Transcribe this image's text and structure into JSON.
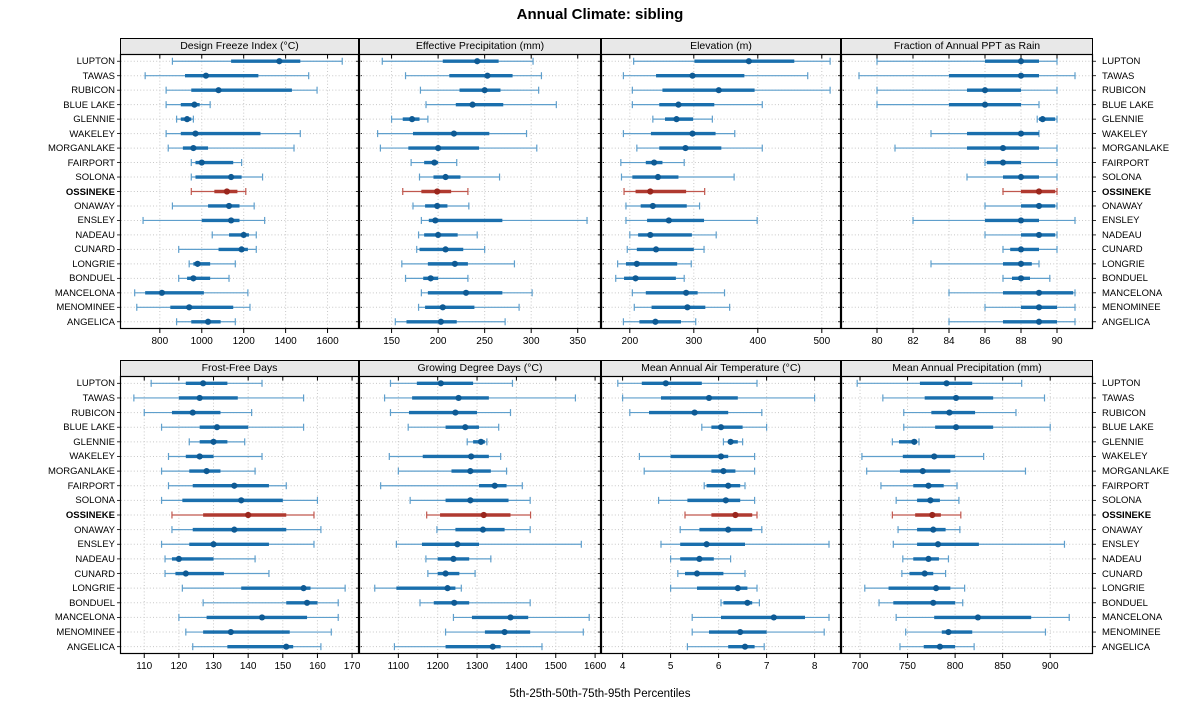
{
  "title": "Annual Climate: sibling",
  "xlabel": "5th-25th-50th-75th-95th Percentiles",
  "highlight_site": "OSSINEKE",
  "colors": {
    "blue_thin": "#5f9fcc",
    "blue_thick": "#1a6fad",
    "blue_dot": "#0e5a94",
    "red_thin": "#c0574e",
    "red_thick": "#b03a30",
    "red_dot": "#9a261d",
    "strip_bg": "#e8e8e8",
    "grid": "#c8c8c8",
    "border": "#000000"
  },
  "chart_data": {
    "type": "interval-dotplot",
    "note": "Each row shows 5th-25th-50th-75th-95th percentile whisker/box/dot per site",
    "percentiles": [
      "5th",
      "25th",
      "50th",
      "75th",
      "95th"
    ],
    "categories": [
      "LUPTON",
      "TAWAS",
      "RUBICON",
      "BLUE LAKE",
      "GLENNIE",
      "WAKELEY",
      "MORGANLAKE",
      "FAIRPORT",
      "SOLONA",
      "OSSINEKE",
      "ONAWAY",
      "ENSLEY",
      "NADEAU",
      "CUNARD",
      "LONGRIE",
      "BONDUEL",
      "MANCELONA",
      "MENOMINEE",
      "ANGELICA"
    ],
    "panels": [
      {
        "title": "Design Freeze Index (°C)",
        "ticks": [
          800,
          1000,
          1200,
          1400,
          1600
        ],
        "xlim": [
          610,
          1750
        ],
        "values": [
          [
            860,
            1140,
            1370,
            1470,
            1670
          ],
          [
            730,
            920,
            1020,
            1270,
            1510
          ],
          [
            830,
            950,
            1080,
            1430,
            1550
          ],
          [
            830,
            900,
            965,
            990,
            1040
          ],
          [
            880,
            900,
            930,
            950,
            960
          ],
          [
            830,
            900,
            970,
            1280,
            1470
          ],
          [
            840,
            910,
            960,
            1030,
            1440
          ],
          [
            950,
            970,
            1000,
            1150,
            1190
          ],
          [
            950,
            970,
            1140,
            1190,
            1290
          ],
          [
            950,
            1060,
            1120,
            1170,
            1210
          ],
          [
            860,
            1030,
            1130,
            1180,
            1250
          ],
          [
            720,
            1000,
            1140,
            1180,
            1300
          ],
          [
            1050,
            1130,
            1200,
            1225,
            1260
          ],
          [
            890,
            1080,
            1190,
            1220,
            1260
          ],
          [
            940,
            960,
            980,
            1040,
            1160
          ],
          [
            890,
            930,
            960,
            1040,
            1130
          ],
          [
            680,
            730,
            810,
            1010,
            1220
          ],
          [
            690,
            850,
            940,
            1150,
            1230
          ],
          [
            880,
            950,
            1030,
            1090,
            1160
          ]
        ]
      },
      {
        "title": "Effective Precipitation (mm)",
        "ticks": [
          150,
          200,
          250,
          300,
          350
        ],
        "xlim": [
          115,
          375
        ],
        "values": [
          [
            140,
            205,
            242,
            265,
            302
          ],
          [
            165,
            212,
            253,
            280,
            311
          ],
          [
            181,
            223,
            250,
            267,
            308
          ],
          [
            187,
            219,
            237,
            270,
            327
          ],
          [
            150,
            162,
            172,
            180,
            189
          ],
          [
            135,
            173,
            217,
            255,
            295
          ],
          [
            138,
            168,
            200,
            244,
            306
          ],
          [
            171,
            185,
            196,
            200,
            220
          ],
          [
            180,
            195,
            208,
            224,
            266
          ],
          [
            162,
            182,
            199,
            214,
            232
          ],
          [
            173,
            186,
            199,
            210,
            233
          ],
          [
            182,
            190,
            197,
            269,
            360
          ],
          [
            179,
            185,
            200,
            221,
            242
          ],
          [
            177,
            180,
            208,
            227,
            250
          ],
          [
            161,
            189,
            218,
            232,
            282
          ],
          [
            165,
            184,
            192,
            200,
            232
          ],
          [
            182,
            189,
            230,
            269,
            301
          ],
          [
            179,
            186,
            205,
            239,
            287
          ],
          [
            154,
            166,
            203,
            220,
            272
          ]
        ]
      },
      {
        "title": "Elevation (m)",
        "ticks": [
          200,
          300,
          400,
          500
        ],
        "xlim": [
          155,
          530
        ],
        "values": [
          [
            206,
            301,
            386,
            457,
            513
          ],
          [
            190,
            241,
            298,
            379,
            478
          ],
          [
            204,
            251,
            339,
            395,
            513
          ],
          [
            204,
            246,
            276,
            332,
            407
          ],
          [
            236,
            255,
            273,
            299,
            329
          ],
          [
            190,
            233,
            298,
            334,
            364
          ],
          [
            211,
            246,
            287,
            343,
            407
          ],
          [
            186,
            225,
            238,
            251,
            285
          ],
          [
            187,
            204,
            244,
            276,
            363
          ],
          [
            191,
            209,
            232,
            288,
            317
          ],
          [
            194,
            217,
            236,
            289,
            309
          ],
          [
            194,
            227,
            261,
            316,
            399
          ],
          [
            200,
            213,
            232,
            297,
            335
          ],
          [
            196,
            211,
            241,
            300,
            316
          ],
          [
            181,
            194,
            211,
            274,
            296
          ],
          [
            178,
            191,
            209,
            272,
            285
          ],
          [
            204,
            225,
            288,
            306,
            348
          ],
          [
            207,
            234,
            290,
            318,
            356
          ],
          [
            190,
            215,
            240,
            280,
            303
          ]
        ]
      },
      {
        "title": "Fraction of Annual PPT as Rain",
        "ticks": [
          80,
          82,
          84,
          86,
          88,
          90
        ],
        "xlim": [
          78,
          92
        ],
        "values": [
          [
            80,
            86,
            88,
            89,
            90
          ],
          [
            79,
            84,
            88,
            89,
            91
          ],
          [
            80,
            85,
            86,
            88,
            90
          ],
          [
            80,
            84,
            86,
            88,
            89
          ],
          [
            88.9,
            89,
            89.2,
            89.9,
            90
          ],
          [
            83,
            85,
            88,
            89,
            89
          ],
          [
            81,
            85,
            87,
            89,
            90
          ],
          [
            86,
            86.1,
            87,
            88,
            90
          ],
          [
            85,
            87,
            88,
            89,
            90
          ],
          [
            87,
            88,
            89,
            89.9,
            90
          ],
          [
            86,
            88,
            89,
            89.9,
            90
          ],
          [
            82,
            86,
            88,
            89,
            91
          ],
          [
            86,
            88,
            89,
            89.9,
            90
          ],
          [
            87,
            87.4,
            88,
            89,
            90
          ],
          [
            83,
            87,
            88,
            88.6,
            89
          ],
          [
            87,
            87.5,
            88,
            88.5,
            89.6
          ],
          [
            84,
            87,
            89,
            90.9,
            91
          ],
          [
            86,
            88,
            89,
            90,
            91
          ],
          [
            84,
            87,
            89,
            90,
            91
          ]
        ]
      },
      {
        "title": "Frost-Free Days",
        "ticks": [
          110,
          120,
          130,
          140,
          150,
          160,
          170
        ],
        "xlim": [
          103,
          172
        ],
        "values": [
          [
            112,
            122,
            127,
            134,
            144
          ],
          [
            107,
            120,
            126,
            137,
            156
          ],
          [
            110,
            118,
            124,
            132,
            141
          ],
          [
            115,
            126,
            131,
            140,
            156
          ],
          [
            123,
            126,
            130,
            134,
            139
          ],
          [
            117,
            122,
            126,
            130,
            144
          ],
          [
            115,
            123,
            128,
            132,
            142
          ],
          [
            117,
            124,
            136,
            146,
            151
          ],
          [
            115,
            121,
            138,
            150,
            160
          ],
          [
            118,
            127,
            140,
            151,
            159
          ],
          [
            118,
            124,
            136,
            151,
            161
          ],
          [
            115,
            123,
            130,
            146,
            159
          ],
          [
            116,
            118,
            120,
            130,
            142
          ],
          [
            116,
            119,
            122,
            133,
            146
          ],
          [
            121,
            138,
            156,
            158,
            168
          ],
          [
            127,
            151,
            157,
            160,
            166
          ],
          [
            120,
            128,
            144,
            157,
            166
          ],
          [
            122,
            127,
            135,
            152,
            164
          ],
          [
            124,
            134,
            151,
            153,
            161
          ]
        ]
      },
      {
        "title": "Growing Degree Days (°C)",
        "ticks": [
          1100,
          1200,
          1300,
          1400,
          1500,
          1600
        ],
        "xlim": [
          1000,
          1615
        ],
        "values": [
          [
            1080,
            1147,
            1208,
            1290,
            1390
          ],
          [
            1065,
            1135,
            1253,
            1330,
            1550
          ],
          [
            1080,
            1127,
            1245,
            1300,
            1385
          ],
          [
            1125,
            1220,
            1270,
            1305,
            1355
          ],
          [
            1275,
            1290,
            1310,
            1320,
            1325
          ],
          [
            1077,
            1162,
            1285,
            1330,
            1360
          ],
          [
            1100,
            1235,
            1283,
            1335,
            1375
          ],
          [
            1055,
            1305,
            1345,
            1375,
            1415
          ],
          [
            1130,
            1220,
            1283,
            1380,
            1435
          ],
          [
            1172,
            1206,
            1317,
            1385,
            1436
          ],
          [
            1198,
            1245,
            1315,
            1370,
            1435
          ],
          [
            1095,
            1160,
            1250,
            1305,
            1565
          ],
          [
            1170,
            1200,
            1240,
            1280,
            1335
          ],
          [
            1175,
            1200,
            1220,
            1255,
            1295
          ],
          [
            1040,
            1095,
            1225,
            1245,
            1260
          ],
          [
            1155,
            1190,
            1242,
            1280,
            1435
          ],
          [
            1240,
            1287,
            1385,
            1430,
            1585
          ],
          [
            1220,
            1320,
            1370,
            1435,
            1570
          ],
          [
            1090,
            1220,
            1340,
            1360,
            1465
          ]
        ]
      },
      {
        "title": "Mean Annual Air Temperature (°C)",
        "ticks": [
          4,
          5,
          6,
          7,
          8
        ],
        "xlim": [
          3.55,
          8.55
        ],
        "values": [
          [
            3.9,
            4.4,
            4.9,
            5.65,
            6.8
          ],
          [
            4.0,
            4.8,
            5.8,
            6.4,
            8.0
          ],
          [
            4.15,
            4.55,
            5.5,
            6.2,
            6.9
          ],
          [
            5.65,
            5.85,
            6.05,
            6.5,
            7.0
          ],
          [
            6.1,
            6.2,
            6.25,
            6.4,
            6.5
          ],
          [
            4.35,
            5.0,
            6.05,
            6.2,
            6.75
          ],
          [
            4.45,
            5.85,
            6.1,
            6.35,
            6.75
          ],
          [
            5.7,
            5.75,
            6.2,
            6.45,
            6.55
          ],
          [
            4.75,
            5.35,
            6.15,
            6.45,
            6.75
          ],
          [
            5.3,
            5.85,
            6.35,
            6.7,
            6.8
          ],
          [
            5.2,
            5.6,
            6.2,
            6.7,
            6.9
          ],
          [
            4.8,
            5.2,
            5.75,
            6.55,
            8.3
          ],
          [
            5.0,
            5.2,
            5.6,
            5.9,
            6.25
          ],
          [
            5.15,
            5.3,
            5.55,
            6.1,
            6.55
          ],
          [
            5.0,
            5.55,
            6.4,
            6.6,
            6.8
          ],
          [
            6.05,
            6.1,
            6.6,
            6.7,
            6.85
          ],
          [
            5.45,
            6.05,
            7.15,
            7.8,
            8.3
          ],
          [
            5.45,
            5.8,
            6.45,
            7.0,
            8.2
          ],
          [
            5.35,
            6.2,
            6.55,
            6.75,
            6.95
          ]
        ]
      },
      {
        "title": "Mean Annual Precipitation (mm)",
        "ticks": [
          700,
          750,
          800,
          850,
          900
        ],
        "xlim": [
          680,
          945
        ],
        "values": [
          [
            697,
            763,
            791,
            818,
            870
          ],
          [
            724,
            768,
            801,
            840,
            894
          ],
          [
            746,
            775,
            794,
            821,
            864
          ],
          [
            746,
            779,
            801,
            840,
            900
          ],
          [
            734,
            741,
            757,
            760,
            762
          ],
          [
            702,
            745,
            778,
            800,
            830
          ],
          [
            707,
            742,
            766,
            795,
            874
          ],
          [
            722,
            756,
            772,
            788,
            802
          ],
          [
            738,
            760,
            774,
            784,
            804
          ],
          [
            734,
            758,
            776,
            785,
            806
          ],
          [
            740,
            760,
            777,
            790,
            805
          ],
          [
            735,
            760,
            782,
            825,
            915
          ],
          [
            745,
            756,
            772,
            783,
            793
          ],
          [
            744,
            752,
            768,
            777,
            790
          ],
          [
            705,
            730,
            780,
            795,
            810
          ],
          [
            720,
            735,
            777,
            800,
            808
          ],
          [
            738,
            778,
            824,
            880,
            920
          ],
          [
            748,
            786,
            793,
            818,
            895
          ],
          [
            742,
            767,
            784,
            800,
            820
          ]
        ]
      }
    ]
  }
}
